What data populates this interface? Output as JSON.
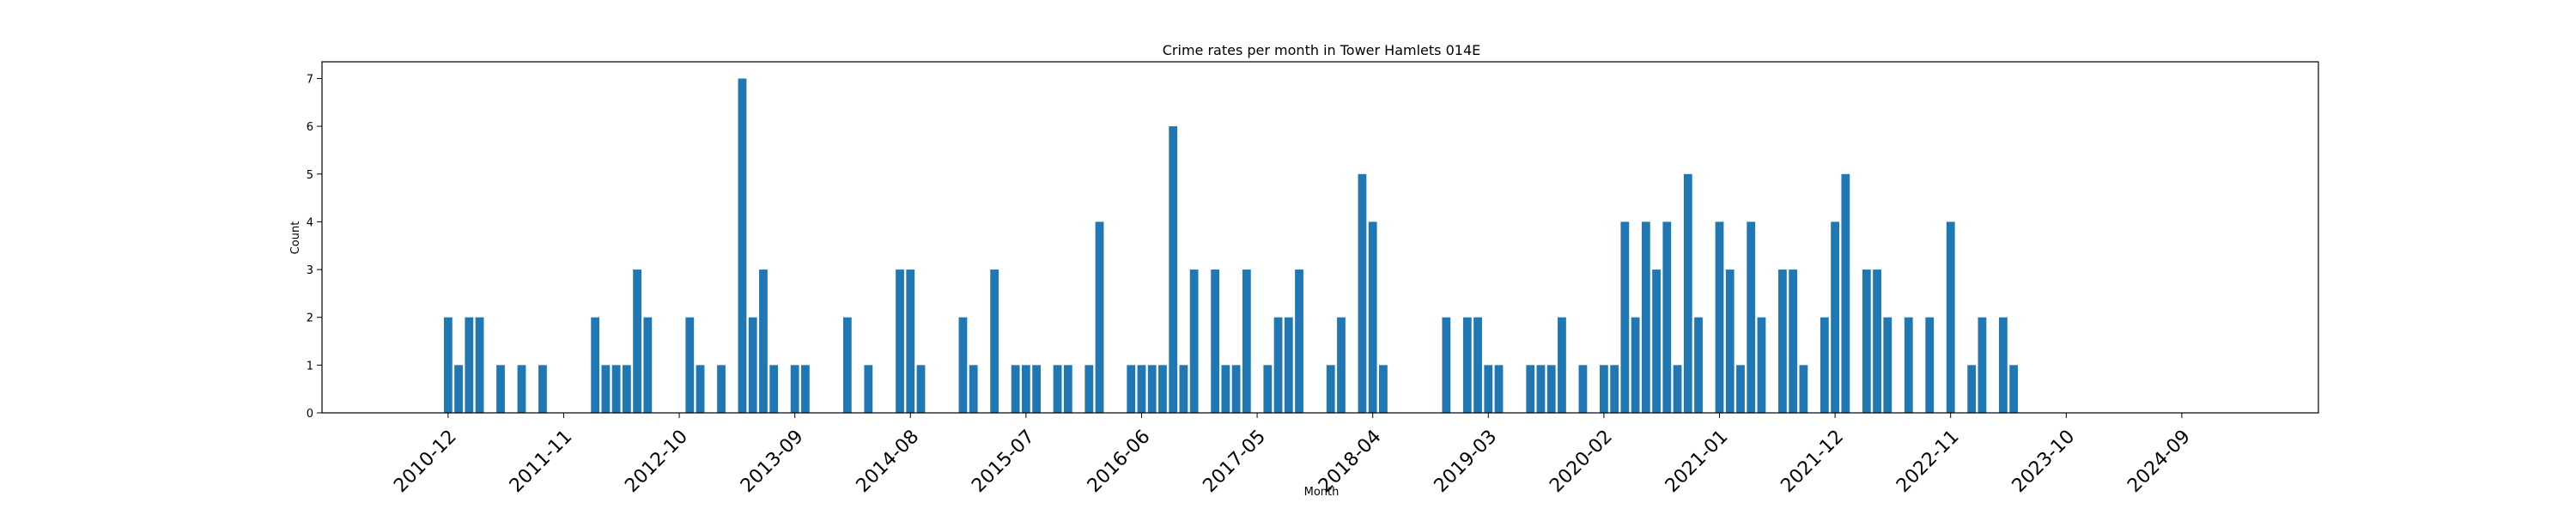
{
  "chart_data": {
    "type": "bar",
    "title": "Crime rates per month in Tower Hamlets 014E",
    "xlabel": "Month",
    "ylabel": "Count",
    "ylim": [
      0,
      7.35
    ],
    "yticks": [
      0,
      1,
      2,
      3,
      4,
      5,
      6,
      7
    ],
    "xlim": [
      "2009-12",
      "2025-10"
    ],
    "xticks": [
      "2010-12",
      "2011-11",
      "2012-10",
      "2013-09",
      "2014-08",
      "2015-07",
      "2016-06",
      "2017-05",
      "2018-04",
      "2019-03",
      "2020-02",
      "2021-01",
      "2021-12",
      "2022-11",
      "2023-10",
      "2024-09"
    ],
    "bar_color": "#1f77b4",
    "grid": false,
    "points": [
      {
        "x": "2010-12",
        "y": 2
      },
      {
        "x": "2011-01",
        "y": 1
      },
      {
        "x": "2011-02",
        "y": 2
      },
      {
        "x": "2011-03",
        "y": 2
      },
      {
        "x": "2011-05",
        "y": 1
      },
      {
        "x": "2011-07",
        "y": 1
      },
      {
        "x": "2011-09",
        "y": 1
      },
      {
        "x": "2012-02",
        "y": 2
      },
      {
        "x": "2012-03",
        "y": 1
      },
      {
        "x": "2012-04",
        "y": 1
      },
      {
        "x": "2012-05",
        "y": 1
      },
      {
        "x": "2012-06",
        "y": 3
      },
      {
        "x": "2012-07",
        "y": 2
      },
      {
        "x": "2012-11",
        "y": 2
      },
      {
        "x": "2012-12",
        "y": 1
      },
      {
        "x": "2013-02",
        "y": 1
      },
      {
        "x": "2013-04",
        "y": 7
      },
      {
        "x": "2013-05",
        "y": 2
      },
      {
        "x": "2013-06",
        "y": 3
      },
      {
        "x": "2013-07",
        "y": 1
      },
      {
        "x": "2013-09",
        "y": 1
      },
      {
        "x": "2013-10",
        "y": 1
      },
      {
        "x": "2014-02",
        "y": 2
      },
      {
        "x": "2014-04",
        "y": 1
      },
      {
        "x": "2014-07",
        "y": 3
      },
      {
        "x": "2014-08",
        "y": 3
      },
      {
        "x": "2014-09",
        "y": 1
      },
      {
        "x": "2015-01",
        "y": 2
      },
      {
        "x": "2015-02",
        "y": 1
      },
      {
        "x": "2015-04",
        "y": 3
      },
      {
        "x": "2015-06",
        "y": 1
      },
      {
        "x": "2015-07",
        "y": 1
      },
      {
        "x": "2015-08",
        "y": 1
      },
      {
        "x": "2015-10",
        "y": 1
      },
      {
        "x": "2015-11",
        "y": 1
      },
      {
        "x": "2016-01",
        "y": 1
      },
      {
        "x": "2016-02",
        "y": 4
      },
      {
        "x": "2016-05",
        "y": 1
      },
      {
        "x": "2016-06",
        "y": 1
      },
      {
        "x": "2016-07",
        "y": 1
      },
      {
        "x": "2016-08",
        "y": 1
      },
      {
        "x": "2016-09",
        "y": 6
      },
      {
        "x": "2016-10",
        "y": 1
      },
      {
        "x": "2016-11",
        "y": 3
      },
      {
        "x": "2017-01",
        "y": 3
      },
      {
        "x": "2017-02",
        "y": 1
      },
      {
        "x": "2017-03",
        "y": 1
      },
      {
        "x": "2017-04",
        "y": 3
      },
      {
        "x": "2017-06",
        "y": 1
      },
      {
        "x": "2017-07",
        "y": 2
      },
      {
        "x": "2017-08",
        "y": 2
      },
      {
        "x": "2017-09",
        "y": 3
      },
      {
        "x": "2017-12",
        "y": 1
      },
      {
        "x": "2018-01",
        "y": 2
      },
      {
        "x": "2018-03",
        "y": 5
      },
      {
        "x": "2018-04",
        "y": 4
      },
      {
        "x": "2018-05",
        "y": 1
      },
      {
        "x": "2018-11",
        "y": 2
      },
      {
        "x": "2019-01",
        "y": 2
      },
      {
        "x": "2019-02",
        "y": 2
      },
      {
        "x": "2019-03",
        "y": 1
      },
      {
        "x": "2019-04",
        "y": 1
      },
      {
        "x": "2019-07",
        "y": 1
      },
      {
        "x": "2019-08",
        "y": 1
      },
      {
        "x": "2019-09",
        "y": 1
      },
      {
        "x": "2019-10",
        "y": 2
      },
      {
        "x": "2019-12",
        "y": 1
      },
      {
        "x": "2020-02",
        "y": 1
      },
      {
        "x": "2020-03",
        "y": 1
      },
      {
        "x": "2020-04",
        "y": 4
      },
      {
        "x": "2020-05",
        "y": 2
      },
      {
        "x": "2020-06",
        "y": 4
      },
      {
        "x": "2020-07",
        "y": 3
      },
      {
        "x": "2020-08",
        "y": 4
      },
      {
        "x": "2020-09",
        "y": 1
      },
      {
        "x": "2020-10",
        "y": 5
      },
      {
        "x": "2020-11",
        "y": 2
      },
      {
        "x": "2021-01",
        "y": 4
      },
      {
        "x": "2021-02",
        "y": 3
      },
      {
        "x": "2021-03",
        "y": 1
      },
      {
        "x": "2021-04",
        "y": 4
      },
      {
        "x": "2021-05",
        "y": 2
      },
      {
        "x": "2021-07",
        "y": 3
      },
      {
        "x": "2021-08",
        "y": 3
      },
      {
        "x": "2021-09",
        "y": 1
      },
      {
        "x": "2021-11",
        "y": 2
      },
      {
        "x": "2021-12",
        "y": 4
      },
      {
        "x": "2022-01",
        "y": 5
      },
      {
        "x": "2022-03",
        "y": 3
      },
      {
        "x": "2022-04",
        "y": 3
      },
      {
        "x": "2022-05",
        "y": 2
      },
      {
        "x": "2022-07",
        "y": 2
      },
      {
        "x": "2022-09",
        "y": 2
      },
      {
        "x": "2022-11",
        "y": 4
      },
      {
        "x": "2023-01",
        "y": 1
      },
      {
        "x": "2023-02",
        "y": 2
      },
      {
        "x": "2023-04",
        "y": 2
      },
      {
        "x": "2023-05",
        "y": 1
      }
    ]
  }
}
